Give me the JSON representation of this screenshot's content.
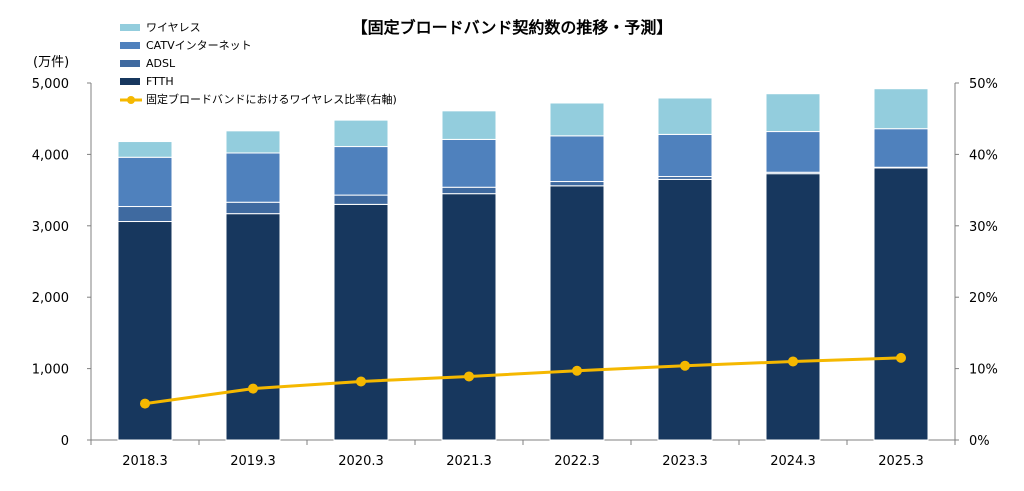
{
  "chart_data": {
    "type": "bar",
    "stacked": true,
    "title": "【固定ブロードバンド契約数の推移・予測】",
    "ylabel": "(万件)",
    "categories": [
      "2018.3",
      "2019.3",
      "2020.3",
      "2021.3",
      "2022.3",
      "2023.3",
      "2024.3",
      "2025.3"
    ],
    "y_ticks": [
      "0",
      "1,000",
      "2,000",
      "3,000",
      "4,000",
      "5,000"
    ],
    "y2_ticks": [
      "0%",
      "10%",
      "20%",
      "30%",
      "40%",
      "50%"
    ],
    "ylim": [
      0,
      5000
    ],
    "y2lim": [
      0,
      50
    ],
    "legend_position": "top-left",
    "series": [
      {
        "name": "FTTH",
        "color": "#17375e",
        "values": [
          3060,
          3170,
          3300,
          3450,
          3560,
          3650,
          3730,
          3810
        ]
      },
      {
        "name": "ADSL",
        "color": "#3f6aa0",
        "values": [
          210,
          160,
          130,
          90,
          60,
          40,
          20,
          10
        ]
      },
      {
        "name": "CATVインターネット",
        "color": "#4f81bd",
        "values": [
          690,
          690,
          680,
          670,
          640,
          590,
          570,
          540
        ]
      },
      {
        "name": "ワイヤレス",
        "color": "#93cddd",
        "values": [
          220,
          310,
          370,
          400,
          460,
          510,
          530,
          560
        ]
      }
    ],
    "line_series": {
      "name": "固定ブロードバンドにおけるワイヤレス比率(右軸)",
      "color": "#f5b800",
      "axis": "right",
      "values": [
        5.1,
        7.2,
        8.2,
        8.9,
        9.7,
        10.4,
        11.0,
        11.5
      ]
    },
    "legend_order": [
      "ワイヤレス",
      "CATVインターネット",
      "ADSL",
      "FTTH",
      "固定ブロードバンドにおけるワイヤレス比率(右軸)"
    ]
  }
}
